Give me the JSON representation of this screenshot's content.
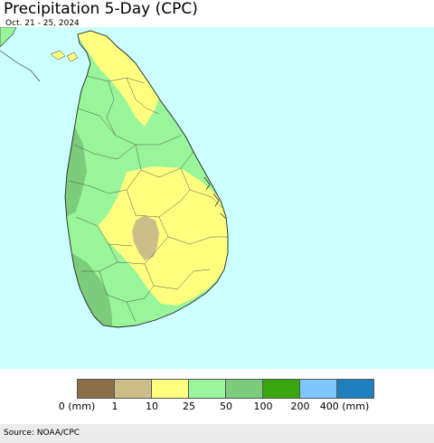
{
  "header": {
    "title": "Precipitation 5-Day (CPC)",
    "subtitle": "Oct. 21 - 25, 2024"
  },
  "map": {
    "ocean_color": "#ccffff",
    "land_colors": {
      "25-50": "#99f599",
      "50-100": "#7ccc7c",
      "10-25": "#ffff7f",
      "1-10": "#cbbe88"
    }
  },
  "legend": {
    "swatches": [
      {
        "color": "#8b6f4a"
      },
      {
        "color": "#cbbe88"
      },
      {
        "color": "#ffff7f"
      },
      {
        "color": "#99f599"
      },
      {
        "color": "#7ccc7c"
      },
      {
        "color": "#3aa60f"
      },
      {
        "color": "#7fc7ff"
      },
      {
        "color": "#1e7fbf"
      }
    ],
    "labels": [
      "0 (mm)",
      "1",
      "10",
      "25",
      "50",
      "100",
      "200",
      "400 (mm)"
    ]
  },
  "footer": {
    "source": "Source: NOAA/CPC"
  }
}
